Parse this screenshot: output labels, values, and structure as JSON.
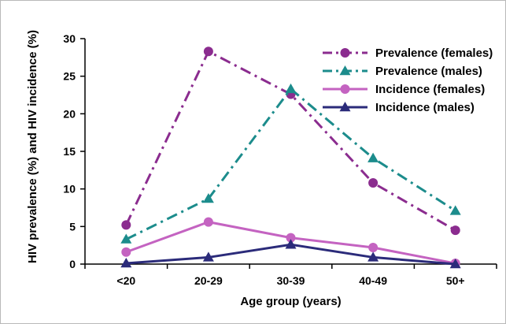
{
  "chart_data": {
    "type": "line",
    "categories": [
      "<20",
      "20-29",
      "30-39",
      "40-49",
      "50+"
    ],
    "xlabel": "Age group (years)",
    "ylabel": "HIV prevalence (%) and HIV incidence (%)",
    "ylim": [
      0,
      30
    ],
    "yticks": [
      0,
      5,
      10,
      15,
      20,
      25,
      30
    ],
    "grid": false,
    "legend_position": "top-right",
    "series": [
      {
        "name": "Prevalence (females)",
        "values": [
          5.2,
          28.3,
          22.6,
          10.8,
          4.5
        ],
        "color": "#8b2c8f",
        "marker": "circle",
        "dash": "dashdot"
      },
      {
        "name": "Prevalence (males)",
        "values": [
          3.3,
          8.7,
          23.3,
          14.1,
          7.1
        ],
        "color": "#1c8c8c",
        "marker": "triangle",
        "dash": "dashdot"
      },
      {
        "name": "Incidence (females)",
        "values": [
          1.6,
          5.6,
          3.5,
          2.2,
          0.1
        ],
        "color": "#c463c1",
        "marker": "circle",
        "dash": "solid"
      },
      {
        "name": "Incidence (males)",
        "values": [
          0.1,
          0.9,
          2.6,
          0.9,
          0.0
        ],
        "color": "#2b2b7a",
        "marker": "triangle",
        "dash": "solid"
      }
    ]
  }
}
